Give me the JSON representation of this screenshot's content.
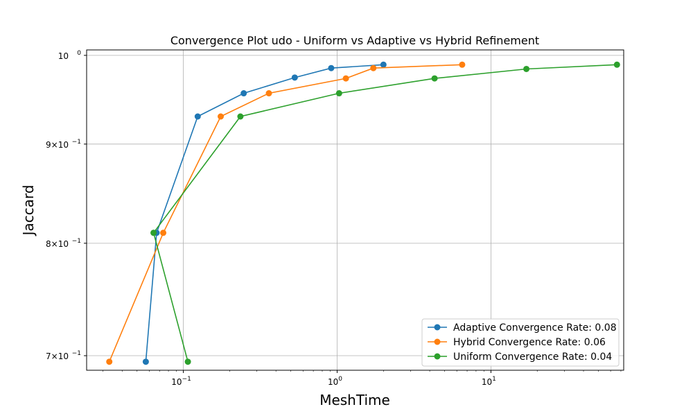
{
  "chart_data": {
    "type": "line",
    "title": "Convergence Plot udo - Uniform vs Adaptive vs Hybrid Refinement",
    "xlabel": "MeshTime",
    "ylabel": "Jaccard",
    "xscale": "log",
    "yscale": "log",
    "xlim": [
      0.0235,
      73
    ],
    "ylim": [
      0.688,
      1.0065
    ],
    "x_ticks": [
      {
        "value": 0.1,
        "base": "10",
        "exp": "−1"
      },
      {
        "value": 1,
        "base": "10",
        "exp": "0"
      },
      {
        "value": 10,
        "base": "10",
        "exp": "1"
      }
    ],
    "y_ticks": [
      {
        "value": 0.7,
        "mant": "7×10",
        "exp": "−1"
      },
      {
        "value": 0.8,
        "mant": "8×10",
        "exp": "−1"
      },
      {
        "value": 0.9,
        "mant": "9×10",
        "exp": "−1"
      },
      {
        "value": 1.0,
        "mant": "10",
        "exp": "0"
      }
    ],
    "grid": true,
    "legend_position": "lower-right",
    "series": [
      {
        "name": "Adaptive Convergence Rate: 0.08",
        "color": "#1f77b4",
        "x": [
          0.057,
          0.067,
          0.124,
          0.247,
          0.53,
          0.915,
          2.0
        ],
        "y": [
          0.695,
          0.81,
          0.93,
          0.956,
          0.974,
          0.985,
          0.989
        ]
      },
      {
        "name": "Hybrid Convergence Rate: 0.06",
        "color": "#ff7f0e",
        "x": [
          0.033,
          0.074,
          0.175,
          0.36,
          1.14,
          1.72,
          6.5
        ],
        "y": [
          0.695,
          0.81,
          0.93,
          0.956,
          0.973,
          0.985,
          0.989
        ]
      },
      {
        "name": "Uniform Convergence Rate: 0.04",
        "color": "#2ca02c",
        "x": [
          0.107,
          0.064,
          0.235,
          1.03,
          4.3,
          17.0,
          66.0
        ],
        "y": [
          0.695,
          0.81,
          0.93,
          0.956,
          0.973,
          0.984,
          0.989
        ]
      }
    ]
  }
}
